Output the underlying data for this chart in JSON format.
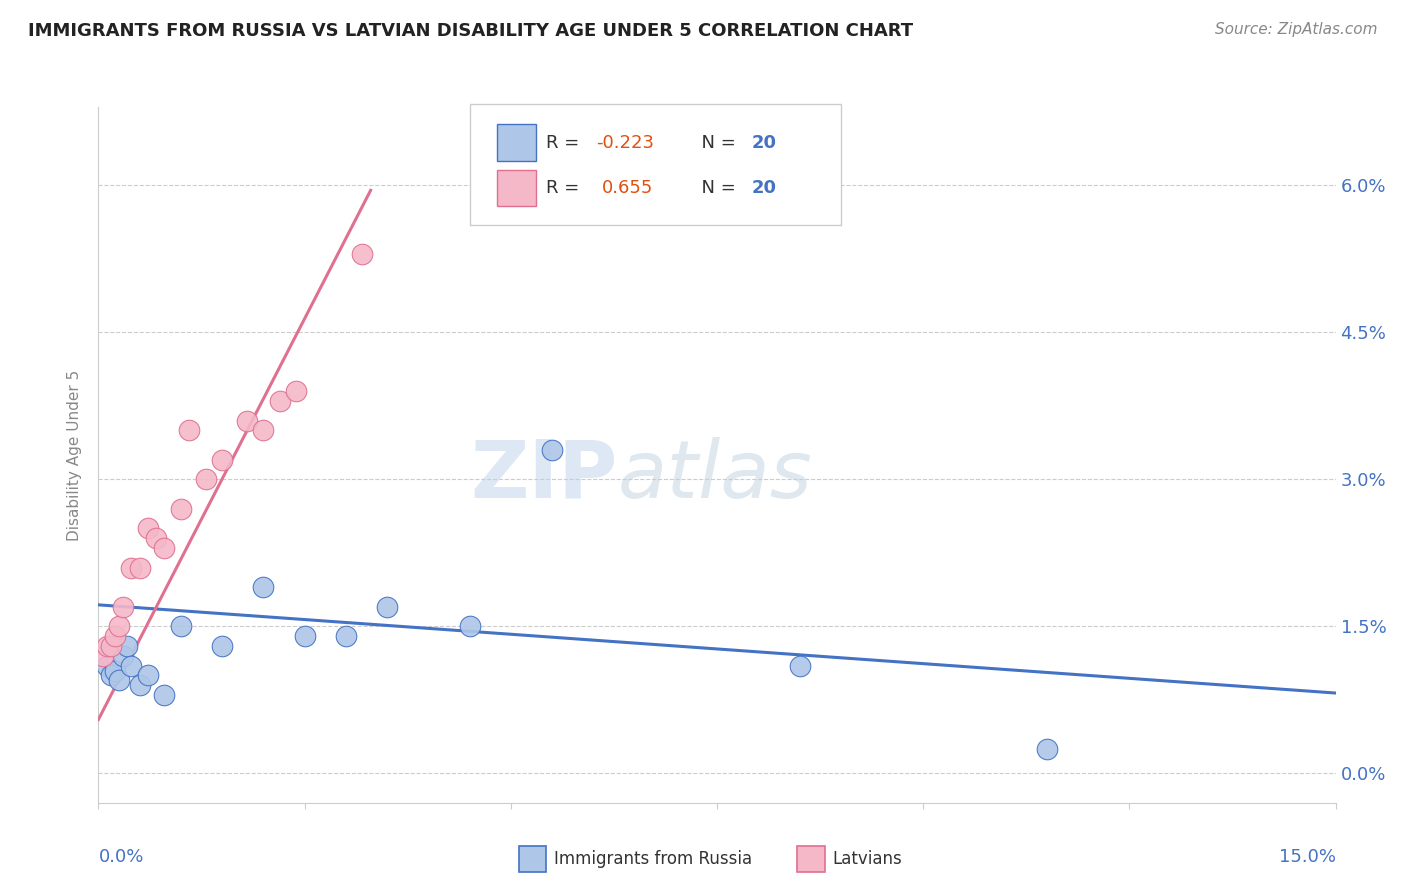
{
  "title": "IMMIGRANTS FROM RUSSIA VS LATVIAN DISABILITY AGE UNDER 5 CORRELATION CHART",
  "source": "Source: ZipAtlas.com",
  "ylabel": "Disability Age Under 5",
  "ytick_vals": [
    0.0,
    1.5,
    3.0,
    4.5,
    6.0
  ],
  "xlim": [
    0.0,
    15.0
  ],
  "ylim": [
    -0.3,
    6.8
  ],
  "watermark_zip": "ZIP",
  "watermark_atlas": "atlas",
  "legend_russia_r": "-0.223",
  "legend_russia_n": "20",
  "legend_latvian_r": "0.655",
  "legend_latvian_n": "20",
  "color_russia": "#aec6e8",
  "color_latvian": "#f4b8c8",
  "color_russia_line": "#4472c4",
  "color_latvian_line": "#e07090",
  "color_axis_labels": "#4472c4",
  "russia_x": [
    0.1,
    0.15,
    0.2,
    0.25,
    0.3,
    0.35,
    0.4,
    0.5,
    0.6,
    0.8,
    1.0,
    1.5,
    2.0,
    2.5,
    3.0,
    3.5,
    4.5,
    5.5,
    8.5,
    11.5
  ],
  "russia_y": [
    1.1,
    1.0,
    1.05,
    0.95,
    1.2,
    1.3,
    1.1,
    0.9,
    1.0,
    0.8,
    1.5,
    1.3,
    1.9,
    1.4,
    1.4,
    1.7,
    1.5,
    3.3,
    1.1,
    0.25
  ],
  "latvian_x": [
    0.05,
    0.1,
    0.15,
    0.2,
    0.25,
    0.3,
    0.4,
    0.5,
    0.6,
    0.7,
    0.8,
    1.0,
    1.1,
    1.3,
    1.5,
    1.8,
    2.0,
    2.2,
    2.4,
    3.2
  ],
  "latvian_y": [
    1.2,
    1.3,
    1.3,
    1.4,
    1.5,
    1.7,
    2.1,
    2.1,
    2.5,
    2.4,
    2.3,
    2.7,
    3.5,
    3.0,
    3.2,
    3.6,
    3.5,
    3.8,
    3.9,
    5.3
  ],
  "russia_line_x": [
    0.0,
    15.0
  ],
  "russia_line_y": [
    1.72,
    0.82
  ],
  "latvian_line_x": [
    0.0,
    3.3
  ],
  "latvian_line_y": [
    0.55,
    5.95
  ]
}
